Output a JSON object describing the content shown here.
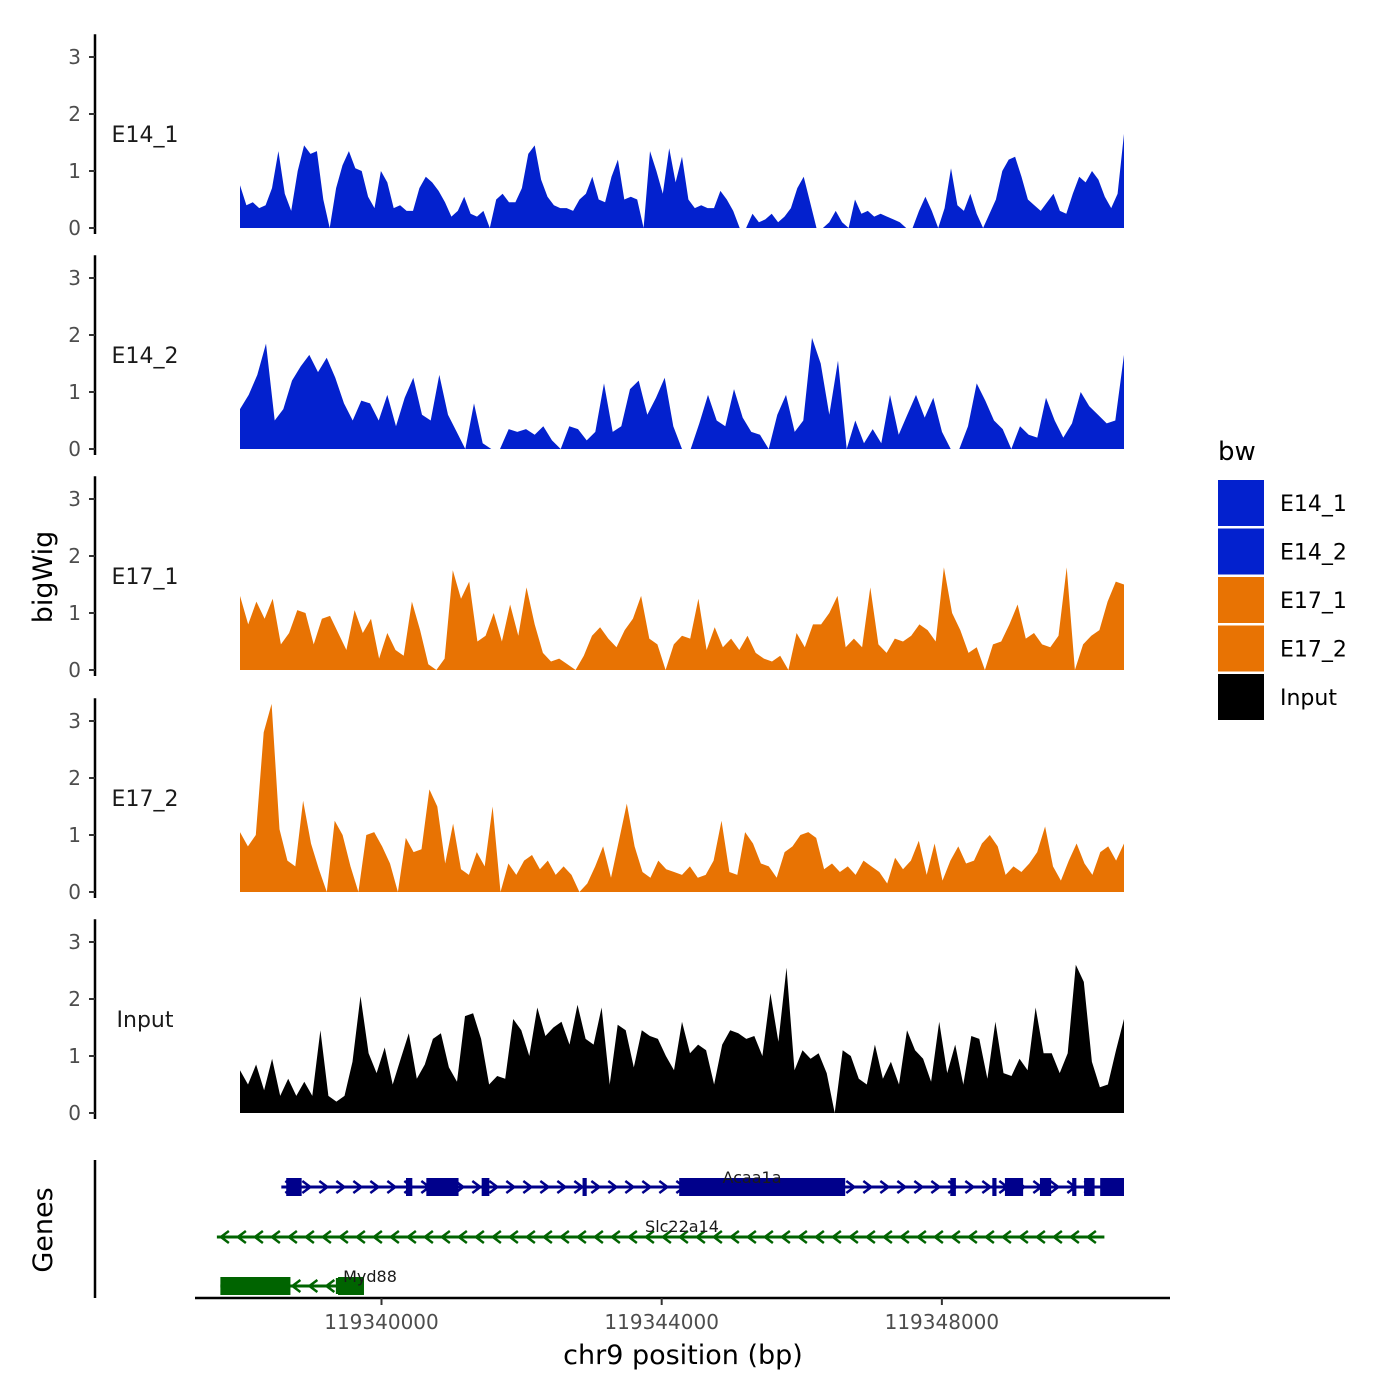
{
  "chart_data": {
    "type": "area",
    "title": "",
    "xlabel": "chr9 position (bp)",
    "ylabel_tracks": "bigWig",
    "ylabel_genes": "Genes",
    "xlim": [
      119337700,
      119351000
    ],
    "ylim": [
      0,
      3.4
    ],
    "x_ticks": [
      {
        "value": 119340000,
        "label": "119340000"
      },
      {
        "value": 119344000,
        "label": "119344000"
      },
      {
        "value": 119348000,
        "label": "119348000"
      }
    ],
    "y_ticks": [
      {
        "value": 0,
        "label": "0"
      },
      {
        "value": 1,
        "label": "1"
      },
      {
        "value": 2,
        "label": "2"
      },
      {
        "value": 3,
        "label": "3"
      }
    ],
    "legend": {
      "title": "bw",
      "position": "right",
      "entries": [
        {
          "label": "E14_1",
          "color": "#0321CE"
        },
        {
          "label": "E14_2",
          "color": "#0321CE"
        },
        {
          "label": "E17_1",
          "color": "#E87303"
        },
        {
          "label": "E17_2",
          "color": "#E87303"
        },
        {
          "label": "Input",
          "color": "#000000"
        }
      ]
    },
    "series": [
      {
        "name": "E14_1",
        "label": "E14_1",
        "color": "#0321CE",
        "x_start": 119337700,
        "step": 200,
        "values": [
          0.75,
          0.4,
          0.45,
          0.35,
          0.4,
          0.7,
          1.35,
          0.6,
          0.3,
          1.0,
          1.45,
          1.3,
          1.35,
          0.5,
          0,
          0.7,
          1.1,
          1.35,
          1.05,
          1.0,
          0.55,
          0.35,
          1.0,
          0.8,
          0.35,
          0.4,
          0.3,
          0.3,
          0.7,
          0.9,
          0.8,
          0.65,
          0.45,
          0.2,
          0.3,
          0.55,
          0.25,
          0.2,
          0.3,
          0,
          0.5,
          0.6,
          0.45,
          0.45,
          0.7,
          1.3,
          1.45,
          0.85,
          0.55,
          0.4,
          0.35,
          0.35,
          0.3,
          0.5,
          0.6,
          0.9,
          0.5,
          0.45,
          0.9,
          1.2,
          0.5,
          0.55,
          0.5,
          0,
          1.35,
          1.0,
          0.6,
          1.4,
          0.8,
          1.25,
          0.5,
          0.35,
          0.4,
          0.35,
          0.35,
          0.65,
          0.5,
          0.3,
          0,
          0,
          0.25,
          0.1,
          0.15,
          0.25,
          0.1,
          0.2,
          0.35,
          0.7,
          0.9,
          0.45,
          0,
          0,
          0.1,
          0.3,
          0.1,
          0,
          0.5,
          0.25,
          0.3,
          0.2,
          0.25,
          0.2,
          0.15,
          0.1,
          0,
          0,
          0.3,
          0.55,
          0.3,
          0,
          0.35,
          1.05,
          0.4,
          0.3,
          0.6,
          0.25,
          0,
          0.25,
          0.5,
          1.0,
          1.2,
          1.25,
          0.9,
          0.5,
          0.4,
          0.3,
          0.45,
          0.6,
          0.3,
          0.25,
          0.6,
          0.9,
          0.8,
          1.0,
          0.85,
          0.55,
          0.35,
          0.6,
          1.65
        ]
      },
      {
        "name": "E14_2",
        "label": "E14_2",
        "color": "#0321CE",
        "x_start": 119337700,
        "step": 200,
        "values": [
          0.7,
          0.95,
          1.3,
          1.85,
          0.5,
          0.7,
          1.2,
          1.45,
          1.65,
          1.35,
          1.6,
          1.25,
          0.8,
          0.5,
          0.85,
          0.8,
          0.5,
          0.95,
          0.4,
          0.9,
          1.25,
          0.6,
          0.5,
          1.3,
          0.6,
          0.3,
          0,
          0.8,
          0.1,
          0,
          0,
          0.35,
          0.3,
          0.35,
          0.25,
          0.4,
          0.15,
          0,
          0.4,
          0.35,
          0.15,
          0.3,
          1.15,
          0.3,
          0.4,
          1.05,
          1.2,
          0.6,
          0.9,
          1.25,
          0.4,
          0,
          0,
          0.45,
          0.95,
          0.5,
          0.4,
          1.05,
          0.55,
          0.3,
          0.25,
          0,
          0.6,
          0.95,
          0.3,
          0.5,
          1.95,
          1.5,
          0.6,
          1.55,
          0,
          0.5,
          0.1,
          0.35,
          0.1,
          0.95,
          0.25,
          0.6,
          0.95,
          0.55,
          0.9,
          0.3,
          0,
          0,
          0.4,
          1.15,
          0.85,
          0.5,
          0.35,
          0,
          0.4,
          0.25,
          0.2,
          0.9,
          0.5,
          0.2,
          0.45,
          1.0,
          0.75,
          0.6,
          0.45,
          0.5,
          1.65
        ]
      },
      {
        "name": "E17_1",
        "label": "E17_1",
        "color": "#E87303",
        "x_start": 119337700,
        "step": 200,
        "values": [
          1.3,
          0.8,
          1.2,
          0.9,
          1.25,
          0.45,
          0.65,
          1.05,
          1.0,
          0.45,
          0.9,
          0.95,
          0.65,
          0.35,
          1.05,
          0.65,
          0.9,
          0.2,
          0.65,
          0.35,
          0.25,
          1.2,
          0.7,
          0.1,
          0,
          0.2,
          1.75,
          1.25,
          1.55,
          0.5,
          0.6,
          1.0,
          0.5,
          1.15,
          0.6,
          1.45,
          0.8,
          0.3,
          0.15,
          0.2,
          0.1,
          0,
          0.25,
          0.6,
          0.75,
          0.55,
          0.4,
          0.7,
          0.9,
          1.3,
          0.55,
          0.45,
          0,
          0.45,
          0.6,
          0.55,
          1.25,
          0.35,
          0.75,
          0.4,
          0.55,
          0.35,
          0.6,
          0.3,
          0.2,
          0.15,
          0.25,
          0,
          0.65,
          0.4,
          0.8,
          0.8,
          1.0,
          1.3,
          0.4,
          0.55,
          0.4,
          1.45,
          0.45,
          0.3,
          0.55,
          0.5,
          0.6,
          0.8,
          0.7,
          0.5,
          1.8,
          1.0,
          0.7,
          0.3,
          0.4,
          0,
          0.45,
          0.5,
          0.8,
          1.15,
          0.55,
          0.65,
          0.45,
          0.4,
          0.6,
          1.8,
          0,
          0.45,
          0.6,
          0.7,
          1.2,
          1.55,
          1.5
        ]
      },
      {
        "name": "E17_2",
        "label": "E17_2",
        "color": "#E87303",
        "x_start": 119337700,
        "step": 200,
        "values": [
          1.05,
          0.8,
          1.0,
          2.8,
          3.3,
          1.1,
          0.55,
          0.45,
          1.6,
          0.85,
          0.4,
          0,
          1.25,
          1.0,
          0.45,
          0,
          1.0,
          1.05,
          0.8,
          0.5,
          0,
          0.95,
          0.7,
          0.75,
          1.8,
          1.5,
          0.5,
          1.2,
          0.4,
          0.3,
          0.7,
          0.45,
          1.5,
          0,
          0.5,
          0.3,
          0.55,
          0.65,
          0.4,
          0.55,
          0.3,
          0.45,
          0.3,
          0,
          0.15,
          0.45,
          0.8,
          0.25,
          0.9,
          1.55,
          0.8,
          0.35,
          0.25,
          0.55,
          0.4,
          0.35,
          0.3,
          0.45,
          0.25,
          0.3,
          0.55,
          1.25,
          0.35,
          0.3,
          1.05,
          0.85,
          0.5,
          0.45,
          0.25,
          0.7,
          0.8,
          1.0,
          1.05,
          0.95,
          0.4,
          0.5,
          0.35,
          0.45,
          0.3,
          0.55,
          0.45,
          0.35,
          0.15,
          0.6,
          0.4,
          0.55,
          0.9,
          0.3,
          0.85,
          0.2,
          0.55,
          0.8,
          0.5,
          0.55,
          0.85,
          1.0,
          0.8,
          0.3,
          0.45,
          0.35,
          0.5,
          0.7,
          1.15,
          0.45,
          0.2,
          0.55,
          0.85,
          0.5,
          0.3,
          0.7,
          0.8,
          0.55,
          0.85
        ]
      },
      {
        "name": "Input",
        "label": "Input",
        "color": "#000000",
        "x_start": 119337700,
        "step": 200,
        "values": [
          0.75,
          0.5,
          0.85,
          0.4,
          0.95,
          0.3,
          0.6,
          0.3,
          0.55,
          0.3,
          1.45,
          0.3,
          0.2,
          0.3,
          0.9,
          2.05,
          1.05,
          0.7,
          1.15,
          0.5,
          0.95,
          1.4,
          0.6,
          0.85,
          1.3,
          1.4,
          0.8,
          0.55,
          1.7,
          1.75,
          1.3,
          0.5,
          0.65,
          0.6,
          1.65,
          1.45,
          1.0,
          1.85,
          1.35,
          1.5,
          1.6,
          1.2,
          1.9,
          1.3,
          1.2,
          1.85,
          0.5,
          1.55,
          1.45,
          0.8,
          1.45,
          1.35,
          1.3,
          1.0,
          0.75,
          1.6,
          1.05,
          1.2,
          1.1,
          0.5,
          1.2,
          1.45,
          1.4,
          1.3,
          1.35,
          1.0,
          2.1,
          1.25,
          2.55,
          0.75,
          1.1,
          0.95,
          1.05,
          0.7,
          0,
          1.1,
          1.0,
          0.6,
          0.5,
          1.2,
          0.6,
          0.9,
          0.5,
          1.45,
          1.1,
          0.95,
          0.55,
          1.6,
          0.7,
          1.2,
          0.5,
          1.35,
          1.3,
          0.6,
          1.6,
          0.7,
          0.65,
          0.95,
          0.75,
          1.85,
          1.05,
          1.05,
          0.7,
          1.05,
          2.6,
          2.3,
          0.9,
          0.45,
          0.5,
          1.1,
          1.65
        ]
      }
    ],
    "genes": [
      {
        "name": "Acaa1a",
        "label": "Acaa1a",
        "strand": "+",
        "color": "#00008B",
        "start": 119338570,
        "end": 119350600,
        "exons": [
          [
            119338640,
            119338860
          ],
          [
            119340350,
            119340440
          ],
          [
            119340640,
            119341100
          ],
          [
            119341430,
            119341540
          ],
          [
            119342870,
            119342930
          ],
          [
            119344250,
            119346620
          ],
          [
            119348120,
            119348200
          ],
          [
            119348720,
            119348780
          ],
          [
            119348900,
            119349160
          ],
          [
            119349400,
            119349560
          ],
          [
            119349860,
            119349920
          ],
          [
            119350030,
            119350180
          ],
          [
            119350260,
            119350600
          ]
        ]
      },
      {
        "name": "Slc22a14",
        "label": "Slc22a14",
        "strand": "-",
        "color": "#006400",
        "start": 119337650,
        "end": 119350320,
        "exons": []
      },
      {
        "name": "Myd88",
        "label": "Myd88",
        "strand": "-",
        "color": "#006400",
        "start": 119337700,
        "end": 119339370,
        "exons": [
          [
            119337700,
            119338700
          ],
          [
            119339380,
            119339750
          ]
        ]
      }
    ]
  }
}
